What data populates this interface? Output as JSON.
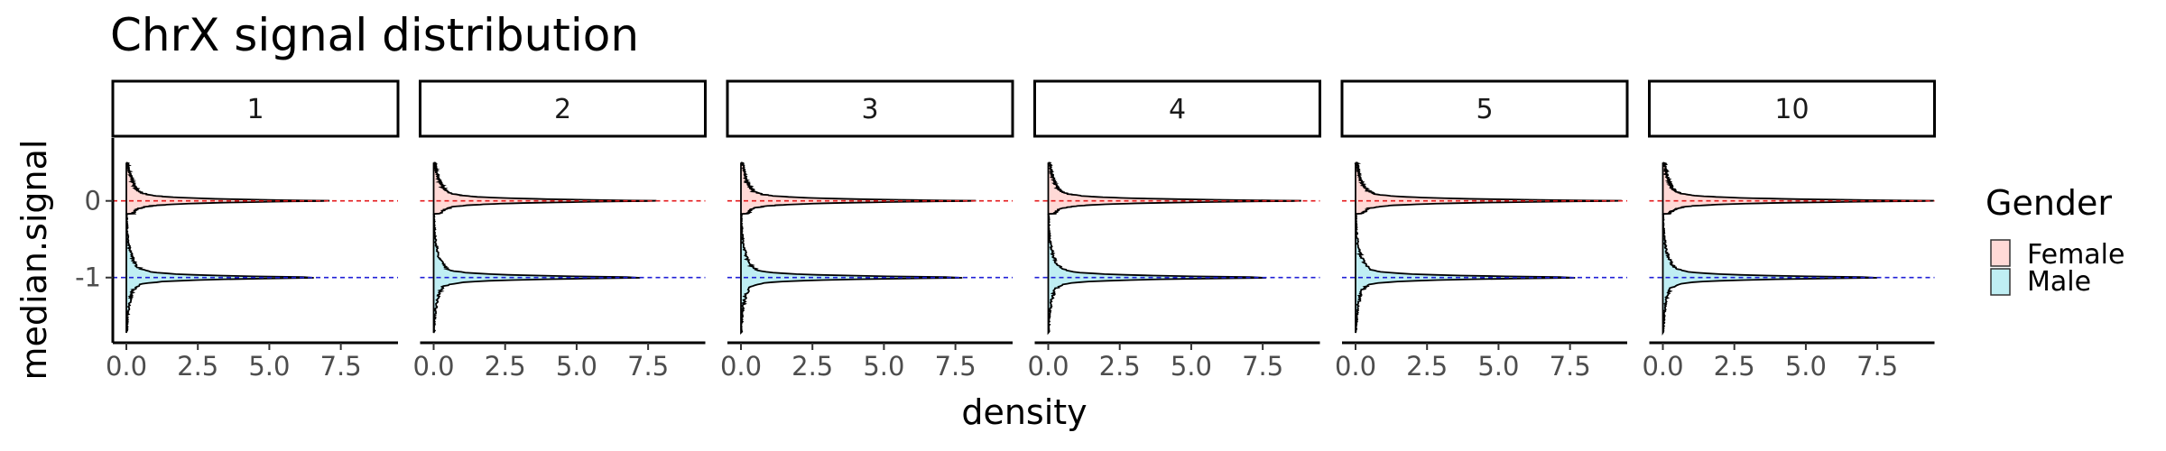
{
  "chart_data": {
    "type": "density",
    "title": "ChrX signal distribution",
    "xlabel": "density",
    "ylabel": "median.signal",
    "orientation": "horizontal-density",
    "facets": [
      "1",
      "2",
      "3",
      "4",
      "5",
      "10"
    ],
    "xlim": [
      0,
      9.5
    ],
    "ylim": [
      -1.85,
      0.82
    ],
    "x_ticks": [
      0,
      2.5,
      5,
      7.5
    ],
    "x_tick_labels": [
      "0.0",
      "2.5",
      "5.0",
      "7.5"
    ],
    "y_ticks": [
      0,
      -1
    ],
    "y_tick_labels": [
      "0",
      "-1"
    ],
    "reference_lines": [
      {
        "y": 0,
        "color": "#e41a1c",
        "style": "dashed"
      },
      {
        "y": -1,
        "color": "#1f1fd6",
        "style": "dashed"
      }
    ],
    "legend": {
      "title": "Gender",
      "position": "right",
      "entries": [
        {
          "label": "Female",
          "fill": "#ffd9d6"
        },
        {
          "label": "Male",
          "fill": "#bfeef3"
        }
      ]
    },
    "series": [
      {
        "name": "Female",
        "center": 0,
        "peak_density_by_facet": [
          6.7,
          7.5,
          7.9,
          8.6,
          9.0,
          9.3
        ]
      },
      {
        "name": "Male",
        "center": -1,
        "peak_density_by_facet": [
          6.7,
          7.5,
          7.9,
          7.8,
          7.9,
          7.7
        ]
      }
    ],
    "grid": false
  }
}
